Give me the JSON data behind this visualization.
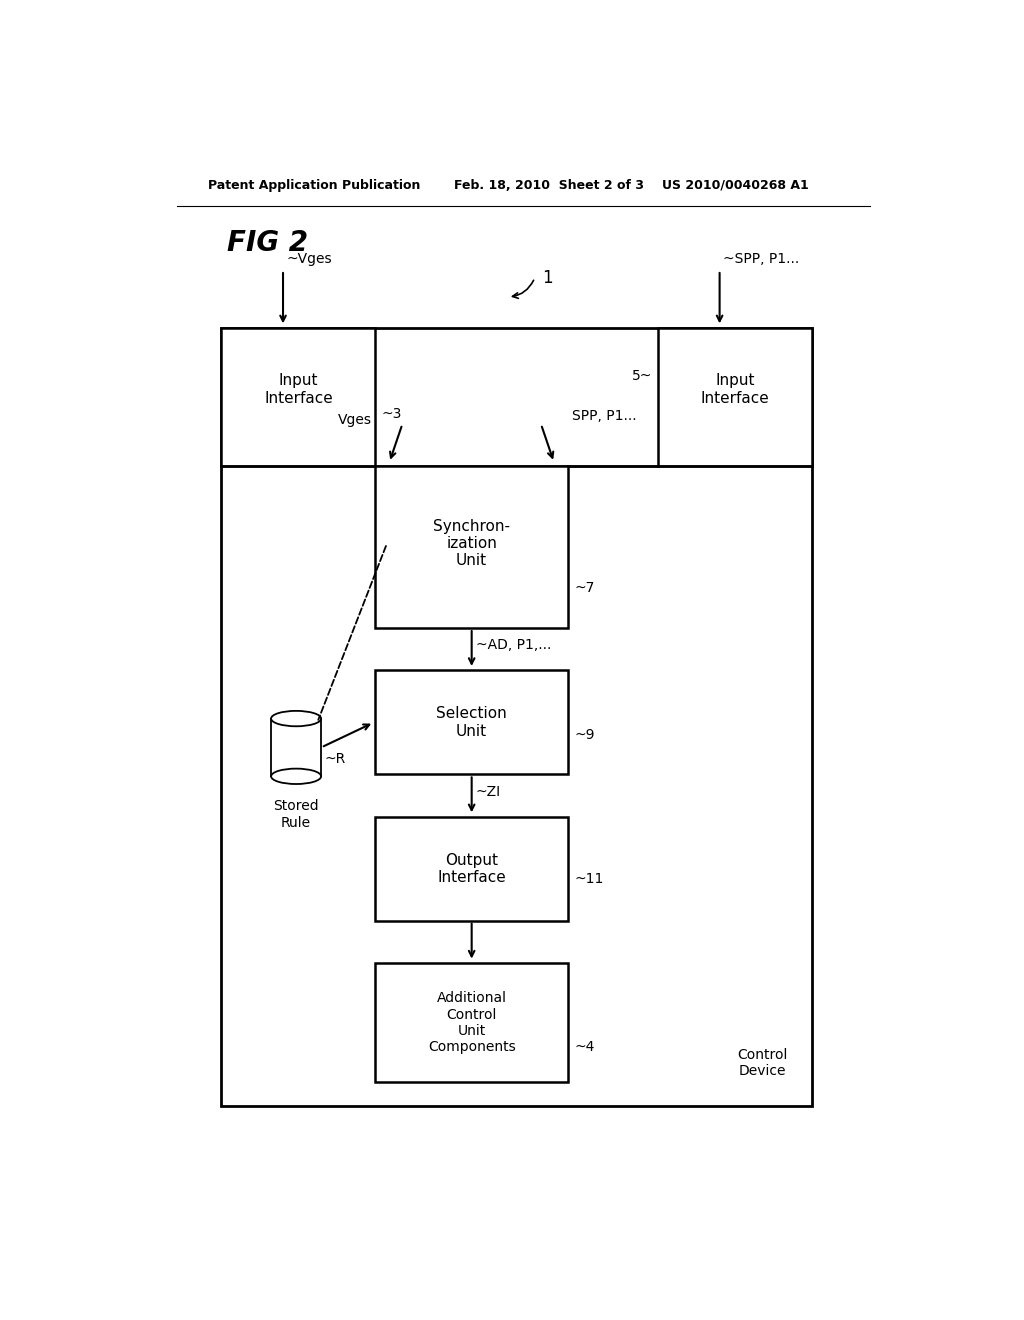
{
  "bg_color": "#ffffff",
  "header_left": "Patent Application Publication",
  "header_mid": "Feb. 18, 2010  Sheet 2 of 3",
  "header_right": "US 2010/0040268 A1",
  "fig_label": "FIG 2",
  "input_left_label": "Input\nInterface",
  "input_left_ref": "~3",
  "input_right_label": "Input\nInterface",
  "input_right_ref": "5~",
  "sync_label": "Synchron-\nization\nUnit",
  "sync_ref": "~7",
  "selection_label": "Selection\nUnit",
  "selection_ref": "~9",
  "output_label": "Output\nInterface",
  "output_ref": "~11",
  "additional_label": "Additional\nControl\nUnit\nComponents",
  "additional_ref": "~4",
  "control_device_label": "Control\nDevice",
  "vges_top_label": "~Vges",
  "spp_top_label": "~SPP, P1...",
  "vges_mid_label": "Vges",
  "spp_mid_label": "SPP, P1...",
  "ad_label": "~AD, P1,...",
  "zl_label": "~ZI",
  "r_label": "~R",
  "stored_rule_label": "Stored\nRule",
  "arrow1_label": "1"
}
